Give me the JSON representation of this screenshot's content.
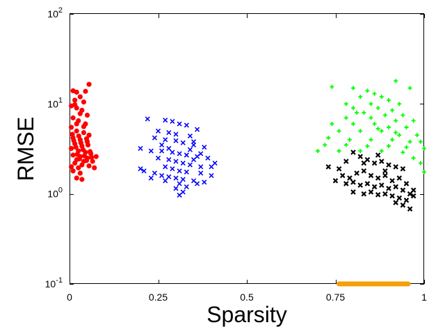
{
  "chart_data": {
    "type": "scatter",
    "xlabel": "Sparsity",
    "ylabel": "RMSE",
    "xlim": [
      0,
      1
    ],
    "ylim": [
      0.1,
      100
    ],
    "y_scale": "log",
    "grid": false,
    "x_ticks": [
      {
        "value": 0,
        "label": "0"
      },
      {
        "value": 0.25,
        "label": "0.25"
      },
      {
        "value": 0.5,
        "label": "0.5"
      },
      {
        "value": 0.75,
        "label": "0.75"
      },
      {
        "value": 1,
        "label": "1"
      }
    ],
    "y_ticks": [
      {
        "value": 0.1,
        "base": "10",
        "exp": "-1"
      },
      {
        "value": 1,
        "base": "10",
        "exp": "0"
      },
      {
        "value": 10,
        "base": "10",
        "exp": "1"
      },
      {
        "value": 100,
        "base": "10",
        "exp": "2"
      }
    ],
    "series": [
      {
        "color": "#ff0000",
        "marker": "circle",
        "points": [
          [
            0.01,
            14.0
          ],
          [
            0.02,
            13.5
          ],
          [
            0.045,
            13.8
          ],
          [
            0.055,
            16.5
          ],
          [
            0.015,
            11.0
          ],
          [
            0.03,
            12.0
          ],
          [
            0.04,
            10.5
          ],
          [
            0.005,
            9.5
          ],
          [
            0.02,
            9.0
          ],
          [
            0.035,
            8.5
          ],
          [
            0.05,
            7.5
          ],
          [
            0.01,
            7.0
          ],
          [
            0.025,
            6.5
          ],
          [
            0.045,
            6.0
          ],
          [
            0.005,
            5.5
          ],
          [
            0.02,
            5.0
          ],
          [
            0.04,
            4.8
          ],
          [
            0.055,
            4.5
          ],
          [
            0.01,
            4.2
          ],
          [
            0.03,
            4.0
          ],
          [
            0.05,
            3.8
          ],
          [
            0.015,
            3.6
          ],
          [
            0.035,
            3.4
          ],
          [
            0.005,
            3.2
          ],
          [
            0.025,
            3.0
          ],
          [
            0.045,
            2.9
          ],
          [
            0.06,
            2.8
          ],
          [
            0.01,
            2.7
          ],
          [
            0.03,
            2.6
          ],
          [
            0.05,
            2.5
          ],
          [
            0.02,
            2.4
          ],
          [
            0.04,
            2.3
          ],
          [
            0.065,
            2.3
          ],
          [
            0.015,
            2.2
          ],
          [
            0.035,
            2.1
          ],
          [
            0.055,
            2.05
          ],
          [
            0.005,
            2.0
          ],
          [
            0.025,
            1.95
          ],
          [
            0.07,
            1.95
          ],
          [
            0.01,
            1.8
          ],
          [
            0.03,
            1.7
          ],
          [
            0.02,
            1.5
          ],
          [
            0.035,
            1.45
          ],
          [
            0.015,
            9.8
          ],
          [
            0.03,
            7.8
          ],
          [
            0.02,
            6.0
          ],
          [
            0.04,
            5.6
          ],
          [
            0.008,
            4.6
          ],
          [
            0.026,
            4.4
          ],
          [
            0.048,
            4.1
          ],
          [
            0.012,
            3.9
          ],
          [
            0.032,
            3.7
          ],
          [
            0.052,
            3.5
          ],
          [
            0.018,
            3.3
          ],
          [
            0.038,
            3.1
          ],
          [
            0.058,
            2.95
          ],
          [
            0.022,
            2.75
          ],
          [
            0.042,
            2.65
          ],
          [
            0.062,
            2.55
          ],
          [
            0.028,
            2.45
          ],
          [
            0.048,
            2.35
          ],
          [
            0.075,
            2.6
          ]
        ]
      },
      {
        "color": "#0000ff",
        "marker": "x",
        "points": [
          [
            0.22,
            6.8
          ],
          [
            0.27,
            6.6
          ],
          [
            0.29,
            6.4
          ],
          [
            0.31,
            6.0
          ],
          [
            0.33,
            5.8
          ],
          [
            0.36,
            5.2
          ],
          [
            0.25,
            5.0
          ],
          [
            0.28,
            4.8
          ],
          [
            0.3,
            4.6
          ],
          [
            0.34,
            4.4
          ],
          [
            0.24,
            4.2
          ],
          [
            0.27,
            4.0
          ],
          [
            0.3,
            3.9
          ],
          [
            0.32,
            3.7
          ],
          [
            0.35,
            3.5
          ],
          [
            0.38,
            3.3
          ],
          [
            0.2,
            3.2
          ],
          [
            0.23,
            3.0
          ],
          [
            0.26,
            3.0
          ],
          [
            0.29,
            2.9
          ],
          [
            0.31,
            2.8
          ],
          [
            0.33,
            2.7
          ],
          [
            0.36,
            2.6
          ],
          [
            0.39,
            2.5
          ],
          [
            0.25,
            2.5
          ],
          [
            0.28,
            2.4
          ],
          [
            0.3,
            2.3
          ],
          [
            0.32,
            2.2
          ],
          [
            0.34,
            2.1
          ],
          [
            0.37,
            2.0
          ],
          [
            0.4,
            2.0
          ],
          [
            0.27,
            2.0
          ],
          [
            0.29,
            1.9
          ],
          [
            0.31,
            1.8
          ],
          [
            0.33,
            1.75
          ],
          [
            0.2,
            1.9
          ],
          [
            0.21,
            1.8
          ],
          [
            0.24,
            1.7
          ],
          [
            0.26,
            1.6
          ],
          [
            0.28,
            1.55
          ],
          [
            0.3,
            1.5
          ],
          [
            0.32,
            1.45
          ],
          [
            0.35,
            1.4
          ],
          [
            0.38,
            1.35
          ],
          [
            0.23,
            1.5
          ],
          [
            0.27,
            1.4
          ],
          [
            0.31,
            1.3
          ],
          [
            0.33,
            1.2
          ],
          [
            0.36,
            1.3
          ],
          [
            0.3,
            1.15
          ],
          [
            0.32,
            1.05
          ],
          [
            0.31,
            0.97
          ],
          [
            0.35,
            3.8
          ],
          [
            0.34,
            3.1
          ],
          [
            0.37,
            2.8
          ],
          [
            0.41,
            2.2
          ],
          [
            0.4,
            1.6
          ],
          [
            0.26,
            3.5
          ],
          [
            0.28,
            3.2
          ],
          [
            0.35,
            2.4
          ],
          [
            0.37,
            1.7
          ]
        ]
      },
      {
        "color": "#00ff00",
        "marker": "plus",
        "points": [
          [
            0.92,
            18.0
          ],
          [
            0.74,
            15.5
          ],
          [
            0.8,
            15.0
          ],
          [
            0.84,
            14.0
          ],
          [
            0.86,
            13.0
          ],
          [
            0.96,
            15.0
          ],
          [
            0.82,
            12.0
          ],
          [
            0.88,
            12.0
          ],
          [
            0.9,
            11.0
          ],
          [
            0.78,
            10.0
          ],
          [
            0.85,
            10.0
          ],
          [
            0.93,
            10.0
          ],
          [
            0.8,
            9.0
          ],
          [
            0.87,
            9.0
          ],
          [
            0.91,
            8.5
          ],
          [
            0.83,
            8.0
          ],
          [
            0.89,
            7.5
          ],
          [
            0.94,
            7.5
          ],
          [
            0.78,
            7.0
          ],
          [
            0.85,
            7.0
          ],
          [
            0.92,
            6.5
          ],
          [
            0.97,
            6.5
          ],
          [
            0.74,
            6.0
          ],
          [
            0.8,
            6.0
          ],
          [
            0.86,
            6.0
          ],
          [
            0.9,
            5.5
          ],
          [
            0.95,
            5.5
          ],
          [
            0.76,
            5.0
          ],
          [
            0.82,
            5.0
          ],
          [
            0.88,
            5.0
          ],
          [
            0.93,
            4.5
          ],
          [
            0.98,
            4.5
          ],
          [
            0.73,
            4.2
          ],
          [
            0.79,
            4.0
          ],
          [
            0.85,
            4.0
          ],
          [
            0.91,
            4.0
          ],
          [
            0.96,
            3.8
          ],
          [
            0.72,
            3.5
          ],
          [
            0.78,
            3.5
          ],
          [
            0.84,
            3.4
          ],
          [
            0.9,
            3.4
          ],
          [
            0.95,
            3.3
          ],
          [
            1.0,
            3.2
          ],
          [
            0.76,
            3.0
          ],
          [
            0.82,
            3.0
          ],
          [
            0.88,
            3.0
          ],
          [
            0.94,
            2.9
          ],
          [
            0.97,
            2.5
          ],
          [
            0.99,
            2.2
          ],
          [
            1.0,
            1.75
          ],
          [
            0.7,
            3.0
          ],
          [
            0.81,
            8.0
          ],
          [
            0.87,
            5.3
          ],
          [
            0.92,
            4.8
          ],
          [
            0.99,
            3.8
          ]
        ]
      },
      {
        "color": "#000000",
        "marker": "x-bold",
        "points": [
          [
            0.73,
            2.0
          ],
          [
            0.76,
            1.9
          ],
          [
            0.78,
            2.3
          ],
          [
            0.8,
            2.9
          ],
          [
            0.82,
            2.6
          ],
          [
            0.84,
            2.4
          ],
          [
            0.86,
            2.2
          ],
          [
            0.88,
            2.3
          ],
          [
            0.9,
            2.1
          ],
          [
            0.92,
            2.0
          ],
          [
            0.94,
            1.9
          ],
          [
            0.77,
            1.6
          ],
          [
            0.79,
            1.5
          ],
          [
            0.81,
            1.7
          ],
          [
            0.83,
            1.8
          ],
          [
            0.85,
            1.6
          ],
          [
            0.87,
            1.5
          ],
          [
            0.89,
            1.6
          ],
          [
            0.91,
            1.4
          ],
          [
            0.93,
            1.5
          ],
          [
            0.95,
            1.3
          ],
          [
            0.75,
            1.4
          ],
          [
            0.78,
            1.3
          ],
          [
            0.8,
            1.35
          ],
          [
            0.82,
            1.25
          ],
          [
            0.84,
            1.3
          ],
          [
            0.86,
            1.2
          ],
          [
            0.88,
            1.25
          ],
          [
            0.9,
            1.15
          ],
          [
            0.92,
            1.2
          ],
          [
            0.94,
            1.1
          ],
          [
            0.96,
            1.0
          ],
          [
            0.8,
            1.05
          ],
          [
            0.83,
            1.0
          ],
          [
            0.85,
            1.05
          ],
          [
            0.87,
            0.98
          ],
          [
            0.89,
            1.0
          ],
          [
            0.91,
            0.95
          ],
          [
            0.93,
            0.9
          ],
          [
            0.95,
            0.85
          ],
          [
            0.97,
            0.95
          ],
          [
            0.92,
            0.8
          ],
          [
            0.94,
            0.75
          ],
          [
            0.96,
            0.68
          ],
          [
            0.87,
            2.7
          ],
          [
            0.83,
            2.2
          ],
          [
            0.89,
            1.8
          ],
          [
            0.97,
            1.1
          ]
        ]
      }
    ],
    "highlight_band": {
      "color": "#f5a00a",
      "x_range": [
        0.76,
        0.955
      ],
      "y_value": 0.1
    }
  }
}
